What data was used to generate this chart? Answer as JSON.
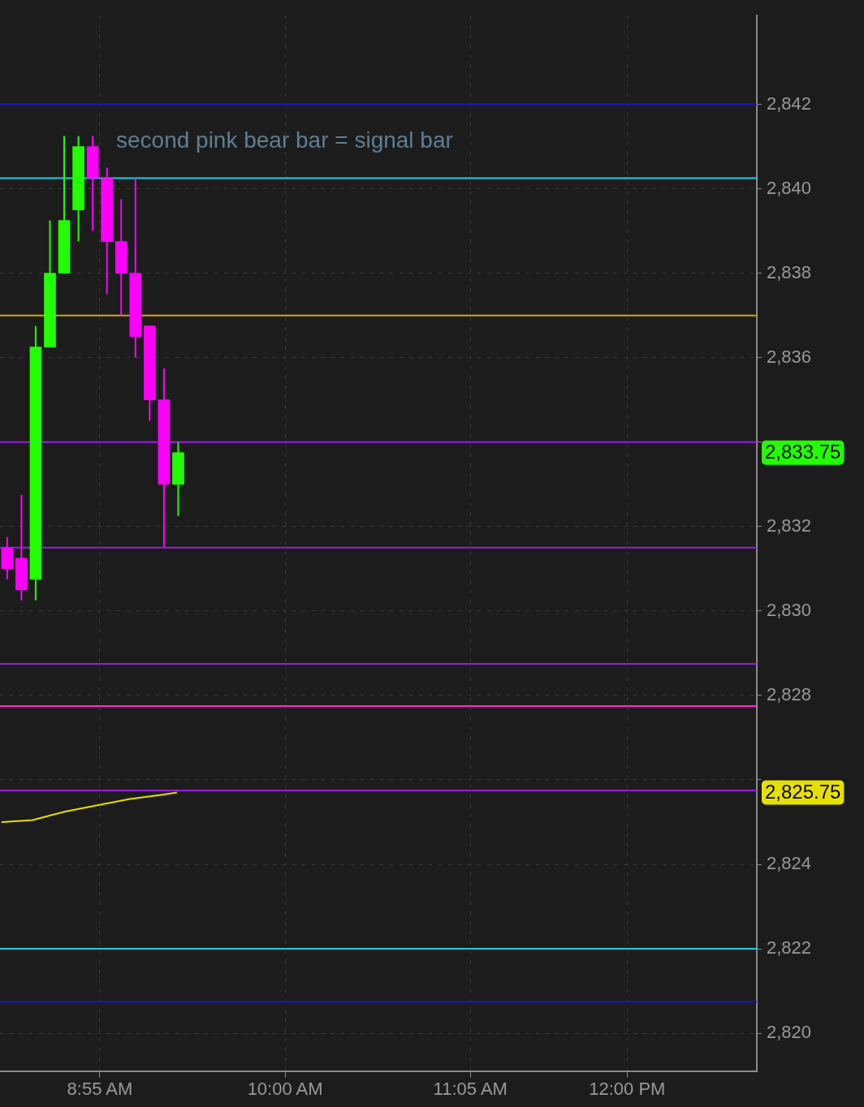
{
  "chart_data": {
    "type": "candlestick",
    "x": [
      8.375,
      8.4583,
      8.5417,
      8.625,
      8.7083,
      8.7917,
      8.875,
      8.9583,
      9.0417,
      9.125,
      9.2083,
      9.2917,
      9.375
    ],
    "ohlc": [
      [
        2831.5,
        2831.75,
        2830.75,
        2831.0
      ],
      [
        2831.25,
        2832.75,
        2830.25,
        2830.5
      ],
      [
        2830.75,
        2836.75,
        2830.25,
        2836.25
      ],
      [
        2836.25,
        2839.25,
        2836.25,
        2838.0
      ],
      [
        2838.0,
        2841.25,
        2838.0,
        2839.25
      ],
      [
        2839.5,
        2841.25,
        2838.75,
        2841.0
      ],
      [
        2841.0,
        2841.25,
        2839.0,
        2840.25
      ],
      [
        2840.25,
        2840.5,
        2837.5,
        2838.75
      ],
      [
        2838.75,
        2839.75,
        2837.0,
        2838.0
      ],
      [
        2838.0,
        2840.25,
        2836.0,
        2836.5
      ],
      [
        2836.75,
        2836.75,
        2834.5,
        2835.0
      ],
      [
        2835.0,
        2835.75,
        2831.5,
        2833.0
      ],
      [
        2833.0,
        2834.0,
        2832.25,
        2833.75
      ]
    ],
    "colors": [
      "#ff00ff",
      "#ff00ff",
      "#22ff00",
      "#22ff00",
      "#22ff00",
      "#22ff00",
      "#ff00ff",
      "#ff00ff",
      "#ff00ff",
      "#ff00ff",
      "#ff00ff",
      "#ff00ff",
      "#22ff00"
    ],
    "series": [
      {
        "type": "line",
        "color": "#e8e000",
        "x": [
          8.342,
          8.523,
          8.713,
          8.902,
          9.092,
          9.282,
          9.368
        ],
        "values": [
          2825.0,
          2825.05,
          2825.25,
          2825.4,
          2825.55,
          2825.65,
          2825.7
        ]
      }
    ],
    "xlim": [
      8.333,
      12.758
    ],
    "xticks": [
      {
        "value": 8.9167,
        "label": "8:55 AM"
      },
      {
        "value": 10,
        "label": "10:00 AM"
      },
      {
        "value": 11.0833,
        "label": "11:05 AM"
      },
      {
        "value": 12,
        "label": "12:00 PM"
      }
    ],
    "ylim": [
      2819.1,
      2844.1
    ],
    "yticks": [
      {
        "value": 2820,
        "label": "2,820"
      },
      {
        "value": 2822,
        "label": "2,822"
      },
      {
        "value": 2824,
        "label": "2,824"
      },
      {
        "value": 2826,
        "label": null
      },
      {
        "value": 2828,
        "label": "2,828"
      },
      {
        "value": 2830,
        "label": "2,830"
      },
      {
        "value": 2832,
        "label": "2,832"
      },
      {
        "value": 2834,
        "label": null
      },
      {
        "value": 2836,
        "label": "2,836"
      },
      {
        "value": 2838,
        "label": "2,838"
      },
      {
        "value": 2840,
        "label": "2,840"
      },
      {
        "value": 2842,
        "label": "2,842"
      }
    ],
    "grid": true,
    "ref_lines": [
      {
        "axis": "y",
        "value": 2842,
        "color": "#1414c8"
      },
      {
        "axis": "y",
        "value": 2840.25,
        "color": "#19d3e0"
      },
      {
        "axis": "y",
        "value": 2837,
        "color": "#d8a800"
      },
      {
        "axis": "y",
        "value": 2834,
        "color": "#9b1de0"
      },
      {
        "axis": "y",
        "value": 2831.5,
        "color": "#9b1de0"
      },
      {
        "axis": "y",
        "value": 2828.75,
        "color": "#9b1de0"
      },
      {
        "axis": "y",
        "value": 2827.75,
        "color": "#ff2ad4"
      },
      {
        "axis": "y",
        "value": 2825.75,
        "color": "#9b1de0"
      },
      {
        "axis": "y",
        "value": 2822,
        "color": "#19d3e0"
      },
      {
        "axis": "y",
        "value": 2820.75,
        "color": "#1414c8"
      }
    ],
    "annotations": [
      "second pink bear bar = signal bar",
      "2,833.75",
      "2,825.75"
    ],
    "legend": false
  }
}
